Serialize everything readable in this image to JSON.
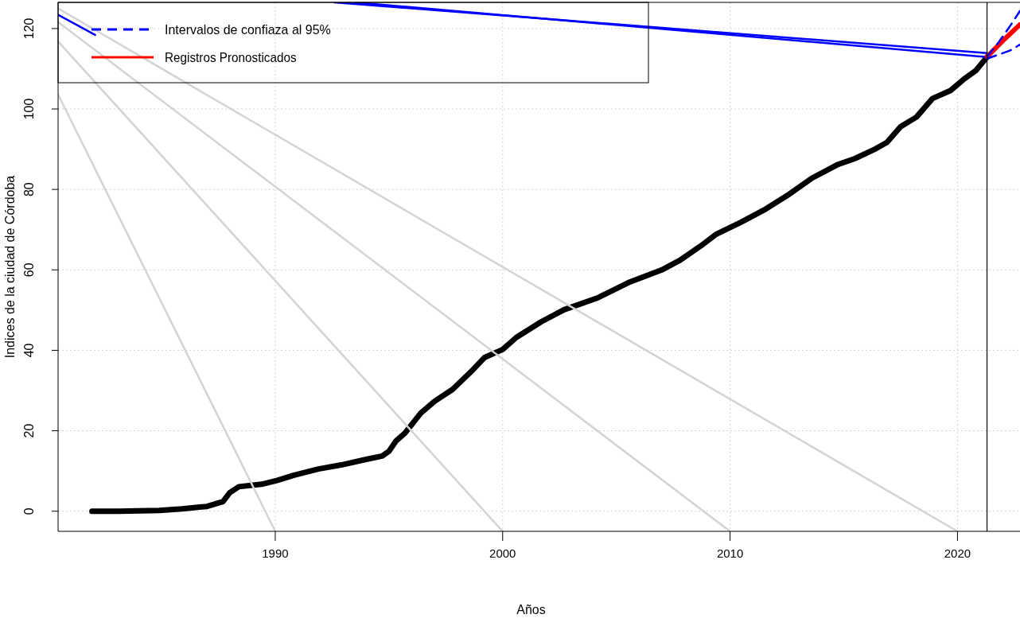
{
  "chart_data": {
    "type": "line",
    "xlabel": "Años",
    "ylabel": "Indices de la ciudad de Córdoba",
    "xlim": [
      1980.45,
      2022.75
    ],
    "ylim": [
      -5,
      126.5
    ],
    "xticks": [
      1990,
      2000,
      2010,
      2020
    ],
    "yticks": [
      0,
      20,
      40,
      60,
      80,
      100,
      120
    ],
    "grid": true,
    "legend": "top left",
    "ref_lines": [
      {
        "axis": "x",
        "value": 2021.3,
        "color": "#000000"
      }
    ],
    "series": [
      {
        "name": "Intervalos de confiaza al 95%",
        "color": "#0000ff",
        "line_style": "dashed",
        "x": [
          2021.3,
          2021.8,
          2022.3,
          2022.75
        ],
        "values": [
          113,
          116.5,
          120.5,
          124.4
        ]
      },
      {
        "color": "#0000ff",
        "line_style": "dashed",
        "x": [
          2021.3,
          2021.8,
          2022.3,
          2022.75
        ],
        "values": [
          112.5,
          113.5,
          114.5,
          116
        ]
      },
      {
        "name": "Registros Pronosticados",
        "color": "#ff0000",
        "x": [
          2021.3,
          2022.0,
          2022.75
        ],
        "values": [
          113,
          117,
          121
        ]
      },
      {
        "color": "#0000ff",
        "x": [
          1992.6,
          2021.3
        ],
        "values": [
          126.5,
          113.9
        ]
      },
      {
        "color": "#0000ff",
        "x": [
          1993.5,
          2021.3
        ],
        "values": [
          126.5,
          112.9
        ]
      },
      {
        "color": "#0000ff",
        "x": [
          1980.45,
          1982.08
        ],
        "values": [
          123.4,
          118.4
        ]
      },
      {
        "color": "#d3d3d3",
        "x": [
          1980.45,
          2020
        ],
        "values": [
          125,
          -5
        ]
      },
      {
        "color": "#d3d3d3",
        "x": [
          1980.45,
          2010
        ],
        "values": [
          121.6,
          -5
        ]
      },
      {
        "color": "#d3d3d3",
        "x": [
          1980.45,
          2000
        ],
        "values": [
          116.8,
          -5
        ]
      },
      {
        "color": "#d3d3d3",
        "x": [
          1980.45,
          1990
        ],
        "values": [
          103.6,
          -5
        ]
      },
      {
        "color": "#000000",
        "x": [
          1981.94,
          1983.1,
          1984.9,
          1985.9,
          1987.0,
          1987.7,
          1988.0,
          1988.4,
          1989.4,
          1990.1,
          1990.8,
          1991.9,
          1992.9,
          1994.0,
          1994.7,
          1995.0,
          1995.3,
          1995.7,
          1996.4,
          1997.0,
          1997.8,
          1998.7,
          1999.2,
          2000.0,
          2000.6,
          2001.7,
          2002.7,
          2004.2,
          2005.6,
          2007.0,
          2007.8,
          2008.7,
          2009.4,
          2010.5,
          2011.5,
          2012.6,
          2013.6,
          2014.7,
          2015.5,
          2016.4,
          2016.9,
          2017.5,
          2018.2,
          2018.9,
          2019.7,
          2020.3,
          2020.8,
          2021.3
        ],
        "values": [
          0,
          0,
          0.2,
          0.6,
          1.2,
          2.4,
          4.6,
          6.1,
          6.7,
          7.7,
          8.9,
          10.5,
          11.5,
          12.9,
          13.7,
          14.9,
          17.4,
          19.4,
          24.4,
          27.3,
          30.3,
          35.2,
          38.2,
          40.2,
          43.2,
          47.1,
          50.1,
          53.1,
          57.0,
          60.0,
          62.4,
          65.9,
          68.9,
          71.9,
          74.9,
          78.8,
          82.8,
          86.1,
          87.7,
          90.1,
          91.7,
          95.6,
          98.0,
          102.6,
          104.6,
          107.5,
          109.5,
          112.9
        ]
      }
    ]
  }
}
